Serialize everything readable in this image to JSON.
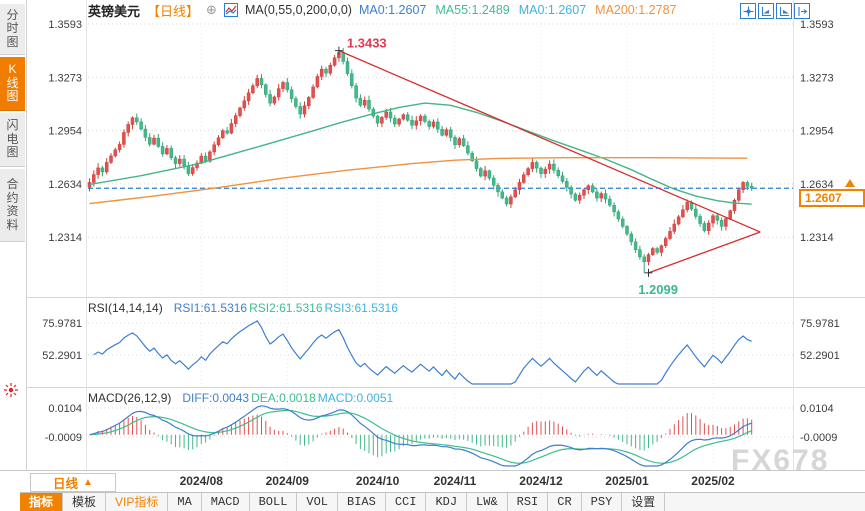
{
  "header": {
    "symbol": "英镑美元",
    "period_tag": "【日线】",
    "link_icon": "⊕",
    "ma_formula": "MA(0,55,0,200,0,0)",
    "ma_values": [
      {
        "label": "MA0:1.2607",
        "color": "#3e7fd0"
      },
      {
        "label": "MA55:1.2489",
        "color": "#3fbd8d"
      },
      {
        "label": "MA0:1.2607",
        "color": "#41b2e2"
      },
      {
        "label": "MA200:1.2787",
        "color": "#f0923e"
      }
    ]
  },
  "sidebar": {
    "items": [
      {
        "label": "分时图",
        "active": false
      },
      {
        "label": "K线图",
        "active": true
      },
      {
        "label": "闪电图",
        "active": false
      },
      {
        "label": "合约资料",
        "active": false
      }
    ]
  },
  "rsi_header": {
    "formula": "RSI(14,14,14)",
    "values": [
      {
        "label": "RSI1:61.5316",
        "color": "#3e7fd0"
      },
      {
        "label": "RSI2:61.5316",
        "color": "#3fbd8d"
      },
      {
        "label": "RSI3:61.5316",
        "color": "#41b2e2"
      }
    ]
  },
  "macd_header": {
    "formula": "MACD(26,12,9)",
    "values": [
      {
        "label": "DIFF:0.0043",
        "color": "#3e7fd0"
      },
      {
        "label": "DEA:0.0018",
        "color": "#3fbd8d"
      },
      {
        "label": "MACD:0.0051",
        "color": "#41b2e2"
      }
    ]
  },
  "bottom": {
    "period_button": "日线",
    "period_arrow": "▲",
    "tabs": [
      {
        "label": "指标",
        "style": "active"
      },
      {
        "label": "模板",
        "style": "normal"
      },
      {
        "label": "VIP指标",
        "style": "vip"
      },
      {
        "label": "MA",
        "style": "normal"
      },
      {
        "label": "MACD",
        "style": "normal"
      },
      {
        "label": "BOLL",
        "style": "normal"
      },
      {
        "label": "VOL",
        "style": "normal"
      },
      {
        "label": "BIAS",
        "style": "normal"
      },
      {
        "label": "CCI",
        "style": "normal"
      },
      {
        "label": "KDJ",
        "style": "normal"
      },
      {
        "label": "LW&",
        "style": "normal"
      },
      {
        "label": "RSI",
        "style": "normal"
      },
      {
        "label": "CR",
        "style": "normal"
      },
      {
        "label": "PSY",
        "style": "normal"
      },
      {
        "label": "设置",
        "style": "normal"
      }
    ]
  },
  "watermark": "FX678",
  "chart_data": {
    "type": "candlestick",
    "title": "英镑美元 日线 (GBP/USD Daily)",
    "price_ticks": [
      "1.3593",
      "1.3273",
      "1.2954",
      "1.2634",
      "1.2314"
    ],
    "current_price": "1.2607",
    "annotations": {
      "high": "1.3433",
      "low": "1.2099"
    },
    "month_ticks": [
      {
        "label": "2024/08",
        "i": 26
      },
      {
        "label": "2024/09",
        "i": 46
      },
      {
        "label": "2024/10",
        "i": 67
      },
      {
        "label": "2024/11",
        "i": 85
      },
      {
        "label": "2024/12",
        "i": 105
      },
      {
        "label": "2025/01",
        "i": 125
      },
      {
        "label": "2025/02",
        "i": 145
      }
    ],
    "closes": [
      1.2642,
      1.2689,
      1.2729,
      1.2705,
      1.2762,
      1.2801,
      1.2838,
      1.287,
      1.2942,
      1.299,
      1.303,
      1.3005,
      1.2962,
      1.2912,
      1.2871,
      1.2908,
      1.2858,
      1.2813,
      1.2846,
      1.279,
      1.2755,
      1.2782,
      1.2742,
      1.2695,
      1.2731,
      1.2758,
      1.28,
      1.2769,
      1.2825,
      1.2868,
      1.291,
      1.2952,
      1.2938,
      1.2995,
      1.3043,
      1.3089,
      1.3132,
      1.318,
      1.3222,
      1.3266,
      1.3228,
      1.317,
      1.3118,
      1.3155,
      1.3205,
      1.3242,
      1.3198,
      1.3145,
      1.3098,
      1.3052,
      1.3102,
      1.3152,
      1.3215,
      1.3278,
      1.3322,
      1.3298,
      1.3345,
      1.339,
      1.3421,
      1.3368,
      1.3295,
      1.3222,
      1.3148,
      1.3105,
      1.3135,
      1.3082,
      1.304,
      1.2998,
      1.3032,
      1.3065,
      1.3028,
      1.2992,
      1.3022,
      1.3048,
      1.3015,
      1.2985,
      1.3012,
      1.304,
      1.3008,
      1.2978,
      1.3005,
      1.2962,
      1.2925,
      1.2958,
      1.2912,
      1.2868,
      1.2905,
      1.2862,
      1.2818,
      1.2772,
      1.2725,
      1.268,
      1.2712,
      1.2668,
      1.2625,
      1.2585,
      1.2548,
      1.2512,
      1.2555,
      1.2598,
      1.2642,
      1.2688,
      1.2725,
      1.2762,
      1.2728,
      1.2695,
      1.2722,
      1.2752,
      1.2715,
      1.2682,
      1.2648,
      1.2612,
      1.2572,
      1.2535,
      1.2565,
      1.2598,
      1.2622,
      1.2585,
      1.2548,
      1.2575,
      1.2542,
      1.2505,
      1.2465,
      1.2422,
      1.2378,
      1.2332,
      1.2285,
      1.2238,
      1.2195,
      1.2166,
      1.2208,
      1.2245,
      1.2222,
      1.2262,
      1.2305,
      1.2348,
      1.2392,
      1.2435,
      1.2478,
      1.2522,
      1.2482,
      1.2438,
      1.2395,
      1.2352,
      1.2398,
      1.2442,
      1.2415,
      1.2378,
      1.2425,
      1.2472,
      1.2535,
      1.2598,
      1.2642,
      1.2618,
      1.2607
    ],
    "peak_wick": 1.3433,
    "trough_wick": 1.2099,
    "ma55_points": [
      [
        0,
        1.263
      ],
      [
        12,
        1.2682
      ],
      [
        25,
        1.2752
      ],
      [
        40,
        1.2862
      ],
      [
        52,
        1.2952
      ],
      [
        58,
        1.2998
      ],
      [
        65,
        1.3048
      ],
      [
        72,
        1.3092
      ],
      [
        78,
        1.3118
      ],
      [
        84,
        1.3105
      ],
      [
        90,
        1.3062
      ],
      [
        96,
        1.3008
      ],
      [
        102,
        1.295
      ],
      [
        108,
        1.2892
      ],
      [
        114,
        1.2838
      ],
      [
        120,
        1.2782
      ],
      [
        126,
        1.2718
      ],
      [
        131,
        1.2658
      ],
      [
        136,
        1.2602
      ],
      [
        141,
        1.256
      ],
      [
        146,
        1.2532
      ],
      [
        150,
        1.2518
      ],
      [
        154,
        1.2512
      ]
    ],
    "ma200_points": [
      [
        0,
        1.2515
      ],
      [
        15,
        1.256
      ],
      [
        29,
        1.2607
      ],
      [
        45,
        1.2668
      ],
      [
        60,
        1.2715
      ],
      [
        75,
        1.2755
      ],
      [
        85,
        1.2775
      ],
      [
        95,
        1.2786
      ],
      [
        110,
        1.279
      ],
      [
        130,
        1.279
      ],
      [
        153,
        1.2787
      ]
    ],
    "rsi_ticks": [
      "75.9781",
      "52.2901"
    ],
    "macd_ticks": [
      "0.0104",
      "-0.0009"
    ],
    "trendlines": [
      {
        "i1": 58,
        "p1": 1.3433,
        "i2": 156,
        "p2": 1.2344
      },
      {
        "i1": 130,
        "p1": 1.2099,
        "i2": 156,
        "p2": 1.2344
      }
    ],
    "colors": {
      "up": "#e0504f",
      "up_stroke": "#cf3f3d",
      "down": "#44b88a",
      "down_stroke": "#2fa578",
      "ma55": "#45b585",
      "ma200": "#f0923e",
      "rsi": "#3e7fd0",
      "diff": "#3e7fd0",
      "dea": "#3fbd8d",
      "grid": "#d8d8d8",
      "vgrid": "#ececec",
      "trend": "#d92b2b",
      "current_line": "#2a7fd4",
      "accent": "#f08200",
      "annotation_high": "#e23a52",
      "annotation_low": "#3cb98b",
      "tick_text": "#3c3c3c"
    }
  }
}
